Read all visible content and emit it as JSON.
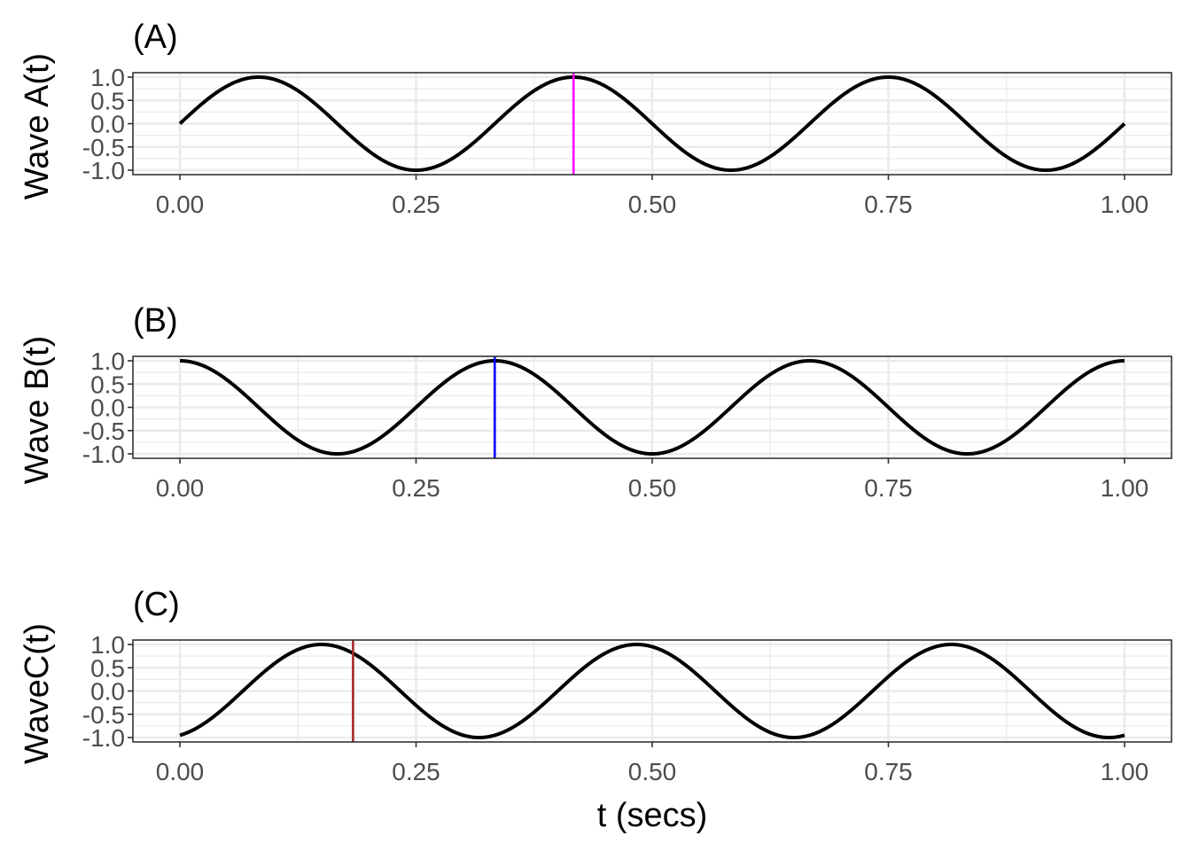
{
  "chart_data": [
    {
      "type": "line",
      "title": "(A)",
      "xlabel": "",
      "ylabel": "Wave A(t)",
      "xlim": [
        0,
        1
      ],
      "ylim": [
        -1,
        1
      ],
      "x_ticks": [
        "0.00",
        "0.25",
        "0.50",
        "0.75",
        "1.00"
      ],
      "y_ticks": [
        "1.0",
        "0.5",
        "0.0",
        "-0.5",
        "-1.0"
      ],
      "grid": true,
      "series": [
        {
          "type": "sine",
          "frequency_hz": 3,
          "phase_rad": 0,
          "x_start": 0,
          "x_end": 1,
          "color": "#000000"
        }
      ],
      "marker_line": {
        "x": 0.4167,
        "color": "#ff00ff"
      }
    },
    {
      "type": "line",
      "title": "(B)",
      "xlabel": "",
      "ylabel": "Wave B(t)",
      "xlim": [
        0,
        1
      ],
      "ylim": [
        -1,
        1
      ],
      "x_ticks": [
        "0.00",
        "0.25",
        "0.50",
        "0.75",
        "1.00"
      ],
      "y_ticks": [
        "1.0",
        "0.5",
        "0.0",
        "-0.5",
        "-1.0"
      ],
      "grid": true,
      "series": [
        {
          "type": "sine",
          "frequency_hz": 3,
          "phase_rad": 1.5708,
          "x_start": 0,
          "x_end": 1,
          "color": "#000000"
        }
      ],
      "marker_line": {
        "x": 0.3333,
        "color": "#0000ff"
      }
    },
    {
      "type": "line",
      "title": "(C)",
      "xlabel": "t (secs)",
      "ylabel": "WaveC(t)",
      "xlim": [
        0,
        1
      ],
      "ylim": [
        -1,
        1
      ],
      "x_ticks": [
        "0.00",
        "0.25",
        "0.50",
        "0.75",
        "1.00"
      ],
      "y_ticks": [
        "1.0",
        "0.5",
        "0.0",
        "-0.5",
        "-1.0"
      ],
      "grid": true,
      "series": [
        {
          "type": "sine",
          "frequency_hz": 3,
          "phase_rad": -1.2566,
          "x_start": 0,
          "x_end": 1,
          "color": "#000000"
        }
      ],
      "marker_line": {
        "x": 0.1833,
        "color": "#a52a2a"
      }
    }
  ]
}
